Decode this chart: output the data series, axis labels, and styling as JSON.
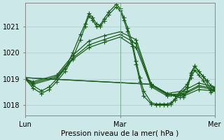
{
  "title": "",
  "xlabel": "Pression niveau de la mer( hPa )",
  "ylabel": "",
  "bg_color": "#cce8e8",
  "grid_color": "#aacccc",
  "line_color": "#1a5c1a",
  "marker": "+",
  "markersize": 4,
  "linewidth": 0.9,
  "ylim": [
    1017.6,
    1021.9
  ],
  "yticks": [
    1018,
    1019,
    1020,
    1021
  ],
  "xtick_positions": [
    0,
    1,
    2
  ],
  "xtick_labels": [
    "Lun",
    "Mar",
    "Mer"
  ],
  "series": [
    {
      "x": [
        0.0,
        0.08,
        0.17,
        0.25,
        0.33,
        0.42,
        0.5,
        0.58,
        0.63,
        0.67,
        0.71,
        0.75,
        0.79,
        0.83,
        0.88,
        0.96,
        1.0,
        1.04,
        1.08,
        1.13,
        1.17,
        1.21,
        1.25,
        1.33,
        1.38,
        1.42,
        1.46,
        1.5,
        1.54,
        1.58,
        1.63,
        1.71,
        1.75,
        1.79,
        1.83,
        1.88,
        1.96,
        2.0
      ],
      "y": [
        1019.0,
        1018.75,
        1018.55,
        1018.7,
        1019.0,
        1019.4,
        1020.0,
        1020.7,
        1021.1,
        1021.5,
        1021.35,
        1021.1,
        1021.05,
        1021.3,
        1021.55,
        1021.85,
        1021.7,
        1021.35,
        1020.95,
        1020.4,
        1019.7,
        1019.05,
        1018.55,
        1018.1,
        1018.05,
        1018.05,
        1018.05,
        1018.05,
        1018.1,
        1018.25,
        1018.5,
        1018.8,
        1019.15,
        1019.5,
        1019.3,
        1019.1,
        1018.6,
        1018.6
      ]
    },
    {
      "x": [
        0.0,
        0.08,
        0.17,
        0.25,
        0.33,
        0.42,
        0.5,
        0.58,
        0.63,
        0.67,
        0.71,
        0.75,
        0.79,
        0.83,
        0.88,
        0.96,
        1.0,
        1.04,
        1.08,
        1.13,
        1.17,
        1.21,
        1.25,
        1.33,
        1.38,
        1.42,
        1.46,
        1.5,
        1.54,
        1.58,
        1.63,
        1.71,
        1.75,
        1.79,
        1.83,
        1.88,
        1.96,
        2.0
      ],
      "y": [
        1019.0,
        1018.65,
        1018.45,
        1018.6,
        1018.9,
        1019.3,
        1019.8,
        1020.5,
        1021.0,
        1021.4,
        1021.25,
        1021.0,
        1021.0,
        1021.2,
        1021.45,
        1021.75,
        1021.6,
        1021.25,
        1020.8,
        1020.25,
        1019.55,
        1018.9,
        1018.35,
        1018.05,
        1018.0,
        1018.0,
        1018.0,
        1018.0,
        1018.05,
        1018.2,
        1018.4,
        1018.7,
        1019.05,
        1019.35,
        1019.15,
        1018.95,
        1018.5,
        1018.55
      ]
    },
    {
      "x": [
        0.0,
        0.08,
        0.33,
        0.5,
        0.67,
        0.83,
        1.0,
        1.17,
        1.33,
        1.5,
        1.67,
        1.83,
        2.0
      ],
      "y": [
        1019.0,
        1018.9,
        1019.15,
        1019.9,
        1020.45,
        1020.65,
        1020.8,
        1020.5,
        1018.8,
        1018.45,
        1018.55,
        1018.85,
        1018.7
      ]
    },
    {
      "x": [
        0.0,
        0.08,
        0.33,
        0.5,
        0.67,
        0.83,
        1.0,
        1.17,
        1.33,
        1.5,
        1.67,
        1.83,
        2.0
      ],
      "y": [
        1019.0,
        1018.85,
        1019.1,
        1019.8,
        1020.3,
        1020.5,
        1020.7,
        1020.35,
        1018.75,
        1018.4,
        1018.45,
        1018.75,
        1018.65
      ]
    },
    {
      "x": [
        0.0,
        0.08,
        0.33,
        0.5,
        0.67,
        0.83,
        1.0,
        1.17,
        1.33,
        1.5,
        1.67,
        1.83,
        2.0
      ],
      "y": [
        1019.05,
        1018.8,
        1019.05,
        1019.75,
        1020.2,
        1020.4,
        1020.6,
        1020.2,
        1018.7,
        1018.35,
        1018.4,
        1018.7,
        1018.6
      ]
    },
    {
      "x": [
        0.0,
        1.33,
        1.5,
        1.54,
        1.58,
        1.63,
        1.67,
        1.71,
        1.75,
        1.79,
        1.83,
        1.88,
        1.92,
        1.96,
        2.0
      ],
      "y": [
        1019.05,
        1018.8,
        1018.45,
        1018.4,
        1018.35,
        1018.3,
        1018.3,
        1018.55,
        1019.25,
        1019.5,
        1019.3,
        1019.1,
        1018.95,
        1018.75,
        1018.65
      ]
    },
    {
      "x": [
        0.0,
        1.33,
        1.5,
        1.67,
        1.83,
        2.0
      ],
      "y": [
        1019.05,
        1018.8,
        1018.42,
        1018.35,
        1018.6,
        1018.55
      ]
    }
  ]
}
